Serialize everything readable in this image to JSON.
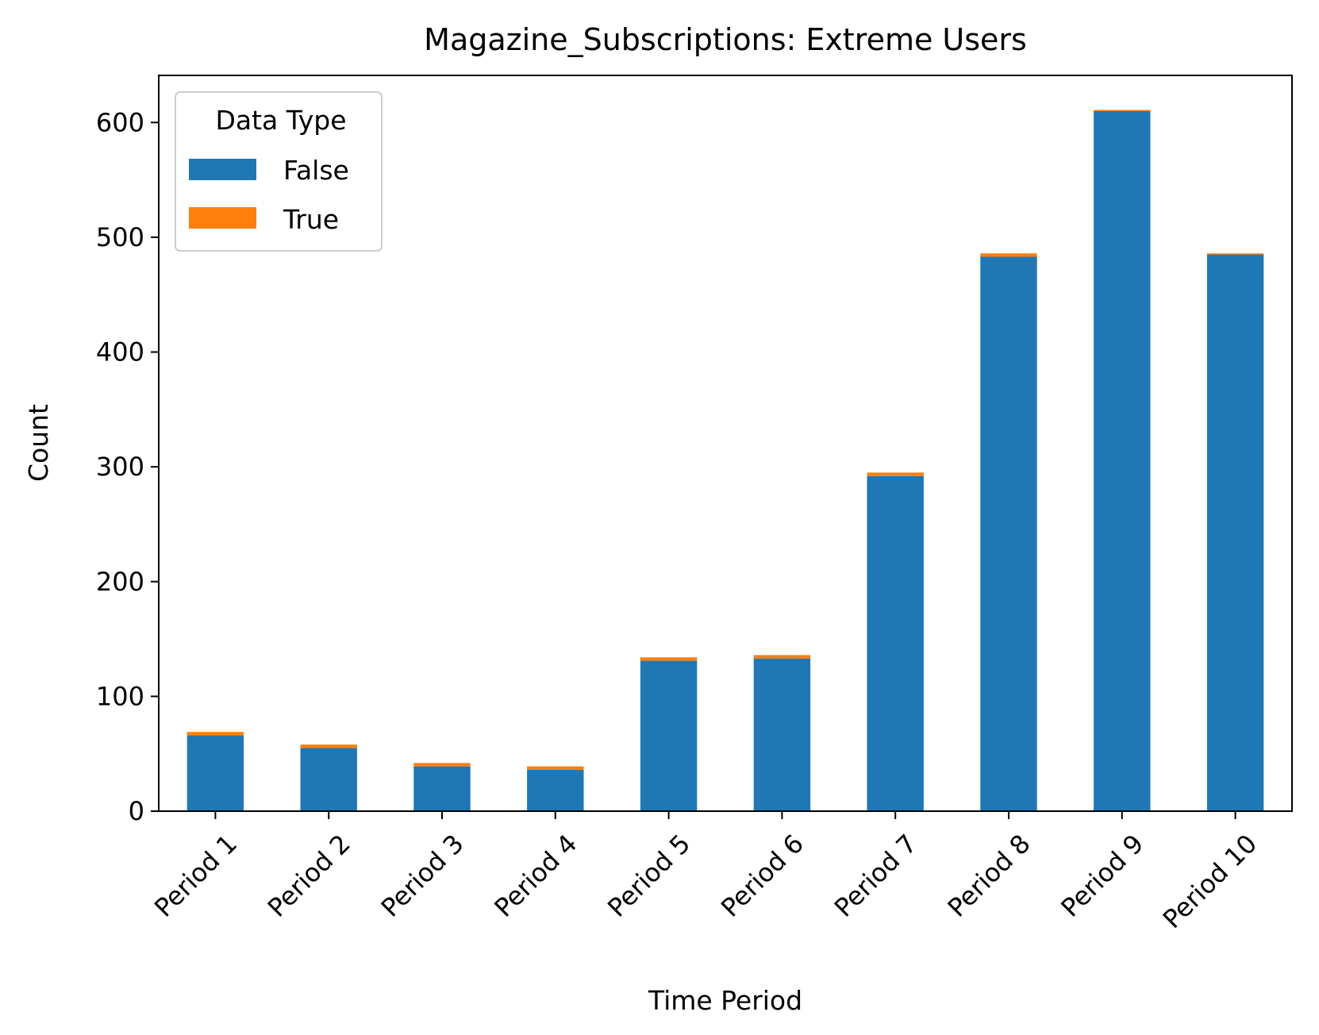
{
  "chart_data": {
    "type": "bar",
    "stacked": true,
    "title": "Magazine_Subscriptions: Extreme Users",
    "xlabel": "Time Period",
    "ylabel": "Count",
    "categories": [
      "Period 1",
      "Period 2",
      "Period 3",
      "Period 4",
      "Period 5",
      "Period 6",
      "Period 7",
      "Period 8",
      "Period 9",
      "Period 10"
    ],
    "series": [
      {
        "name": "False",
        "color": "#1f77b4",
        "values": [
          66,
          55,
          39,
          36,
          131,
          133,
          292,
          483,
          610,
          485
        ]
      },
      {
        "name": "True",
        "color": "#ff7f0e",
        "values": [
          3,
          3,
          3,
          3,
          3,
          3,
          3,
          3,
          1,
          1
        ]
      }
    ],
    "ylim": [
      0,
      641
    ],
    "yticks": [
      0,
      100,
      200,
      300,
      400,
      500,
      600
    ],
    "legend": {
      "title": "Data Type",
      "position": "top-left"
    },
    "grid": false
  }
}
